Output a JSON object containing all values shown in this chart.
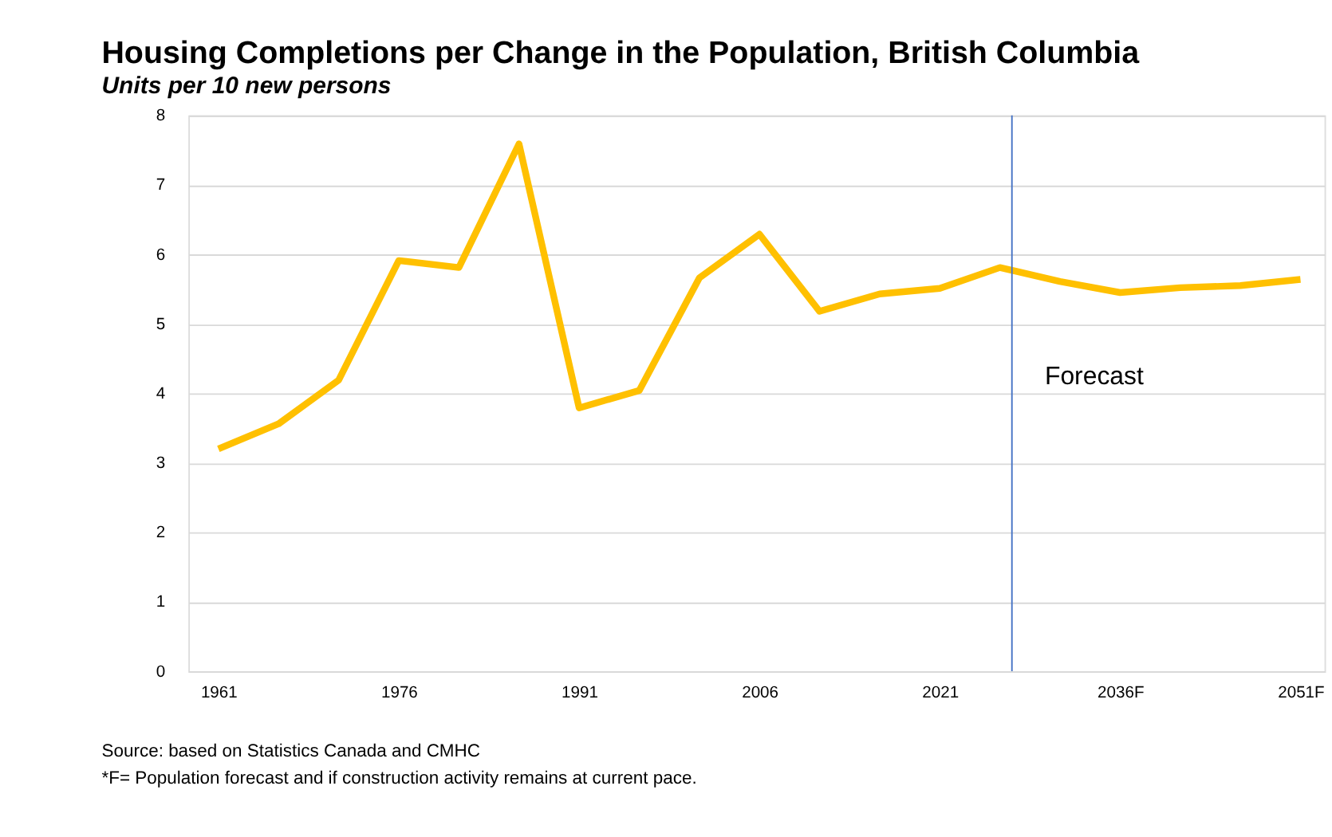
{
  "chart_data": {
    "type": "line",
    "title": "Housing Completions per Change in the Population, British Columbia",
    "subtitle": "Units per 10 new persons",
    "x": [
      1961,
      1966,
      1971,
      1976,
      1981,
      1986,
      1991,
      1996,
      2001,
      2006,
      2011,
      2016,
      2021,
      2026,
      2031,
      2036,
      2041,
      2046,
      2051
    ],
    "series": [
      {
        "color": "#ffc000",
        "values": [
          3.2,
          3.56,
          4.19,
          5.91,
          5.81,
          7.59,
          3.79,
          4.04,
          5.66,
          6.29,
          5.18,
          5.43,
          5.51,
          5.81,
          5.61,
          5.45,
          5.52,
          5.55,
          5.64
        ]
      }
    ],
    "xlim": [
      1958.5,
      2053
    ],
    "xticks": [
      1961,
      1976,
      1991,
      2006,
      2021,
      {
        "value": 2036,
        "label": "2036F"
      },
      {
        "value": 2051,
        "label": "2051F"
      }
    ],
    "ylim": [
      0,
      8
    ],
    "yticks": [
      0,
      1,
      2,
      3,
      4,
      5,
      6,
      7,
      8
    ],
    "grid": "y",
    "ref_lines": [
      {
        "axis": "x",
        "value": 2027,
        "label": "Forecast",
        "color": "#4472c4"
      }
    ],
    "annotations": [
      "Source: based on Statistics Canada and CMHC",
      "*F= Population forecast and if construction activity remains at current pace."
    ]
  }
}
